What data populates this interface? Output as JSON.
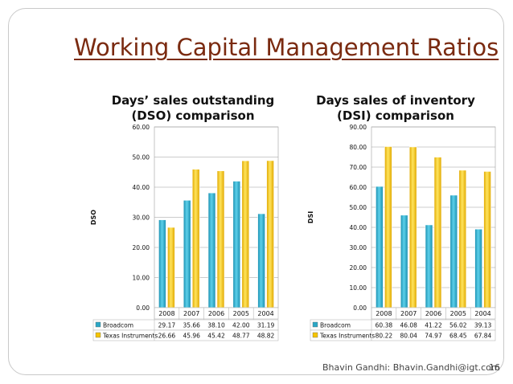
{
  "slide": {
    "title": "Working Capital Management Ratios",
    "footer": "Bhavin Gandhi: Bhavin.Gandhi@igt.com",
    "page_number": "16"
  },
  "colors": {
    "title": "#7a2a10",
    "broadcom": "#2aa7c6",
    "texas_instruments": "#f5c400"
  },
  "chart_data": [
    {
      "type": "bar",
      "title_lines": [
        "Days’ sales outstanding",
        "(DSO) comparison"
      ],
      "ylabel": "DSO",
      "categories": [
        "2008",
        "2007",
        "2006",
        "2005",
        "2004"
      ],
      "ylim": [
        0,
        60
      ],
      "ytick_labels": [
        "0.00",
        "10.00",
        "20.00",
        "30.00",
        "40.00",
        "50.00",
        "60.00"
      ],
      "series": [
        {
          "name": "Broadcom",
          "values": [
            29.17,
            35.66,
            38.1,
            42.0,
            31.19
          ],
          "labels": [
            "29.17",
            "35.66",
            "38.10",
            "42.00",
            "31.19"
          ]
        },
        {
          "name": "Texas Instruments",
          "values": [
            26.66,
            45.96,
            45.42,
            48.77,
            48.82
          ],
          "labels": [
            "26.66",
            "45.96",
            "45.42",
            "48.77",
            "48.82"
          ]
        }
      ]
    },
    {
      "type": "bar",
      "title_lines": [
        "Days sales of inventory",
        "(DSI) comparison"
      ],
      "ylabel": "DSI",
      "categories": [
        "2008",
        "2007",
        "2006",
        "2005",
        "2004"
      ],
      "ylim": [
        0,
        90
      ],
      "ytick_labels": [
        "0.00",
        "10.00",
        "20.00",
        "30.00",
        "40.00",
        "50.00",
        "60.00",
        "70.00",
        "80.00",
        "90.00"
      ],
      "series": [
        {
          "name": "Broadcom",
          "values": [
            60.38,
            46.08,
            41.22,
            56.02,
            39.13
          ],
          "labels": [
            "60.38",
            "46.08",
            "41.22",
            "56.02",
            "39.13"
          ]
        },
        {
          "name": "Texas Instruments",
          "values": [
            80.22,
            80.04,
            74.97,
            68.45,
            67.84
          ],
          "labels": [
            "80.22",
            "80.04",
            "74.97",
            "68.45",
            "67.84"
          ]
        }
      ]
    }
  ]
}
